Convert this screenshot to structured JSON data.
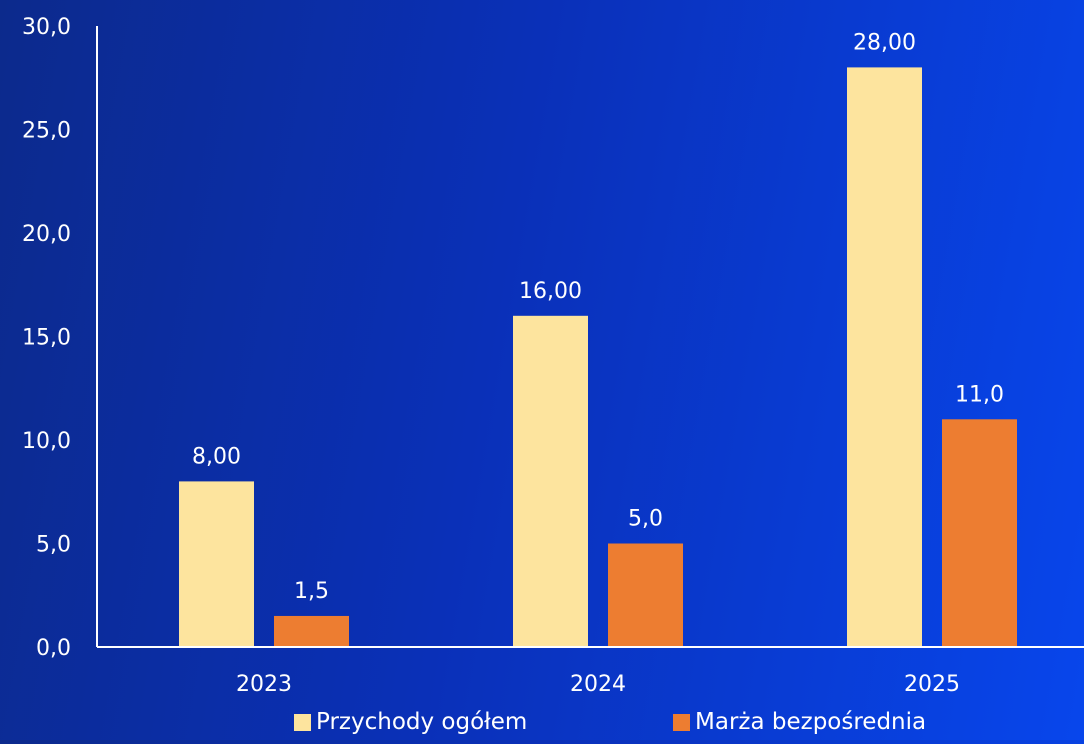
{
  "chart_data": {
    "type": "bar",
    "categories": [
      "2023",
      "2024",
      "2025"
    ],
    "series": [
      {
        "name": "Przychody ogółem",
        "values": [
          8.0,
          16.0,
          28.0
        ],
        "labels": [
          "8,00",
          "16,00",
          "28,00"
        ],
        "color": "#fde49e"
      },
      {
        "name": "Marża bezpośrednia",
        "values": [
          1.5,
          5.0,
          11.0
        ],
        "labels": [
          "1,5",
          "5,0",
          "11,0"
        ],
        "color": "#ed7d31"
      }
    ],
    "ylim": [
      0,
      30
    ],
    "y_ticks": [
      0,
      5,
      10,
      15,
      20,
      25,
      30
    ],
    "y_tick_labels": [
      "0,0",
      "5,0",
      "10,0",
      "15,0",
      "20,0",
      "25,0",
      "30,0"
    ],
    "grid": false,
    "legend_position": "bottom",
    "title": "",
    "xlabel": "",
    "ylabel": ""
  }
}
